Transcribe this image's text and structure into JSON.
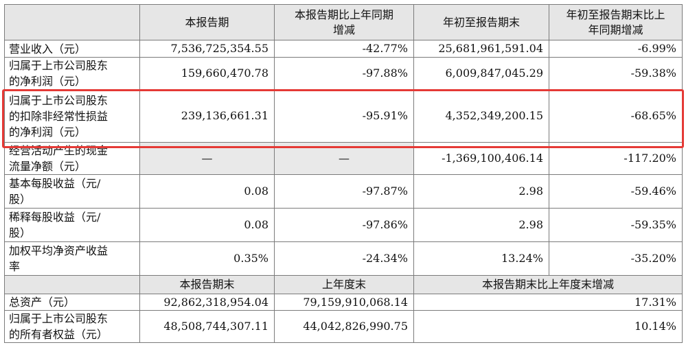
{
  "header": {
    "blank": "",
    "col1": "本报告期",
    "col2": "本报告期比上年同期\n增减",
    "col3": "年初至报告期末",
    "col4": "年初至报告期末比上\n年同期增减"
  },
  "rows": [
    {
      "label": "营业收入（元）",
      "v1": "7,536,725,354.55",
      "v2": "-42.77%",
      "v3": "25,681,961,591.04",
      "v4": "-6.99%"
    },
    {
      "label": "归属于上市公司股东\n的净利润（元）",
      "v1": "159,660,470.78",
      "v2": "-97.88%",
      "v3": "6,009,847,045.29",
      "v4": "-59.38%"
    },
    {
      "label": "归属于上市公司股东\n的扣除非经常性损益\n的净利润（元）",
      "v1": "239,136,661.31",
      "v2": "-95.91%",
      "v3": "4,352,349,200.15",
      "v4": "-68.65%"
    },
    {
      "label": "经营活动产生的现金\n流量净额（元）",
      "v1": "—",
      "v2": "—",
      "v3": "-1,369,100,406.14",
      "v4": "-117.20%"
    },
    {
      "label": "基本每股收益（元/\n股）",
      "v1": "0.08",
      "v2": "-97.87%",
      "v3": "2.98",
      "v4": "-59.46%"
    },
    {
      "label": "稀释每股收益（元/\n股）",
      "v1": "0.08",
      "v2": "-97.86%",
      "v3": "2.98",
      "v4": "-59.35%"
    },
    {
      "label": "加权平均净资产收益\n率",
      "v1": "0.35%",
      "v2": "-24.34%",
      "v3": "13.24%",
      "v4": "-35.20%"
    }
  ],
  "header2": {
    "col1": "本报告期末",
    "col2": "上年度末",
    "col3": "本报告期末比上年度末增减"
  },
  "rows2": [
    {
      "label": "总资产（元）",
      "v1": "92,862,318,954.04",
      "v2": "79,159,910,068.14",
      "v3": "17.31%"
    },
    {
      "label": "归属于上市公司股东\n的所有者权益（元）",
      "v1": "48,508,744,307.11",
      "v2": "44,042,826,990.75",
      "v3": "10.14%"
    }
  ],
  "colors": {
    "highlight_border": "#e53935",
    "header_bg": "#e6e6e6"
  }
}
